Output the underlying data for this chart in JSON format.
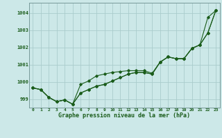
{
  "title": "Graphe pression niveau de la mer (hPa)",
  "bg_color": "#cce8e8",
  "grid_color": "#aacccc",
  "line_color": "#1a5c1a",
  "xlim": [
    -0.5,
    23.5
  ],
  "ylim": [
    998.5,
    1004.6
  ],
  "yticks": [
    999,
    1000,
    1001,
    1002,
    1003,
    1004
  ],
  "xticks": [
    0,
    1,
    2,
    3,
    4,
    5,
    6,
    7,
    8,
    9,
    10,
    11,
    12,
    13,
    14,
    15,
    16,
    17,
    18,
    19,
    20,
    21,
    22,
    23
  ],
  "series1": [
    999.65,
    999.55,
    999.1,
    998.85,
    998.95,
    998.7,
    999.35,
    999.55,
    999.75,
    999.85,
    1000.05,
    1000.25,
    1000.45,
    1000.55,
    1000.55,
    1000.45,
    1001.15,
    1001.45,
    1001.35,
    1001.35,
    1001.95,
    1002.15,
    1003.75,
    1004.15
  ],
  "series2": [
    999.65,
    999.55,
    999.1,
    998.85,
    998.95,
    998.7,
    999.35,
    999.55,
    999.75,
    999.85,
    1000.05,
    1000.25,
    1000.45,
    1000.55,
    1000.55,
    1000.45,
    1001.15,
    1001.45,
    1001.35,
    1001.35,
    1001.95,
    1002.15,
    1002.85,
    1004.15
  ],
  "series3": [
    999.65,
    999.55,
    999.1,
    998.85,
    998.95,
    998.7,
    999.85,
    1000.05,
    1000.35,
    1000.45,
    1000.55,
    1000.6,
    1000.65,
    1000.65,
    1000.65,
    1000.5,
    1001.15,
    1001.45,
    1001.35,
    1001.35,
    1001.95,
    1002.15,
    1002.85,
    1004.15
  ]
}
